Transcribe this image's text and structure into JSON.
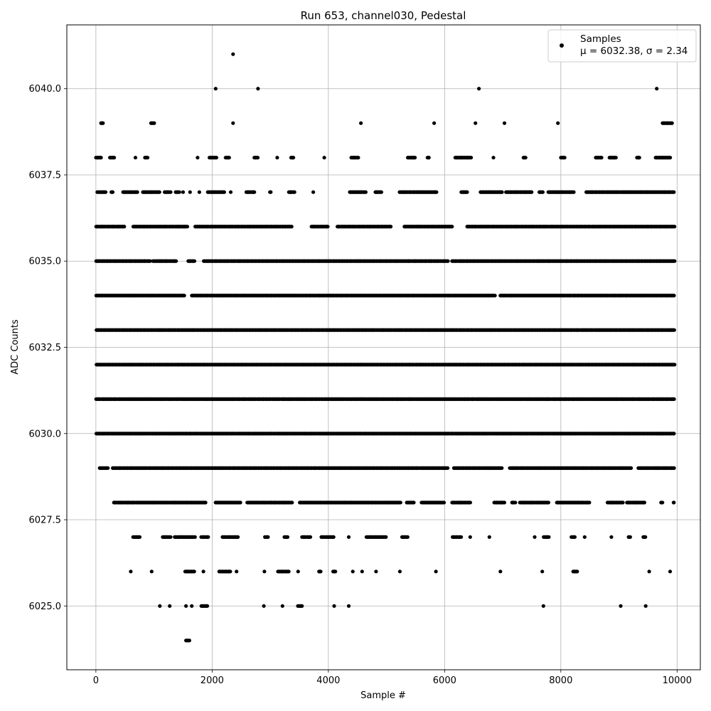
{
  "chart_data": {
    "type": "scatter",
    "title": "Run 653, channel030, Pedestal",
    "xlabel": "Sample #",
    "ylabel": "ADC Counts",
    "xlim": [
      -500,
      10400
    ],
    "ylim": [
      6023.15,
      6041.85
    ],
    "xticks": [
      0,
      2000,
      4000,
      6000,
      8000,
      10000
    ],
    "xtick_labels": [
      "0",
      "2000",
      "4000",
      "6000",
      "8000",
      "10000"
    ],
    "yticks": [
      6025.0,
      6027.5,
      6030.0,
      6032.5,
      6035.0,
      6037.5,
      6040.0
    ],
    "ytick_labels": [
      "6025.0",
      "6027.5",
      "6030.0",
      "6032.5",
      "6035.0",
      "6037.5",
      "6040.0"
    ],
    "grid": true,
    "legend_position": "top-right",
    "marker_color": "#000000",
    "series": [
      {
        "name": "Samples",
        "stats": "μ = 6032.38, σ = 2.34",
        "mean": 6032.38,
        "sigma": 2.34,
        "n_samples": 10000,
        "level_ranges": [
          {
            "y": 6041,
            "x_ranges": [
              [
                2360,
                2360
              ]
            ]
          },
          {
            "y": 6040,
            "x_ranges": [
              [
                2060,
                2060
              ],
              [
                2790,
                2790
              ],
              [
                6590,
                6590
              ],
              [
                9650,
                9650
              ]
            ]
          },
          {
            "y": 6039,
            "x_ranges": [
              [
                80,
                130
              ],
              [
                940,
                1010
              ],
              [
                2360,
                2360
              ],
              [
                4560,
                4560
              ],
              [
                5820,
                5820
              ],
              [
                6530,
                6530
              ],
              [
                7030,
                7030
              ],
              [
                7950,
                7950
              ],
              [
                9740,
                9920
              ]
            ]
          },
          {
            "y": 6038,
            "x_ranges": [
              [
                0,
                100
              ],
              [
                240,
                320
              ],
              [
                680,
                680
              ],
              [
                840,
                900
              ],
              [
                1750,
                1750
              ],
              [
                1950,
                2080
              ],
              [
                2230,
                2300
              ],
              [
                2720,
                2790
              ],
              [
                3120,
                3120
              ],
              [
                3350,
                3400
              ],
              [
                3930,
                3930
              ],
              [
                4390,
                4520
              ],
              [
                5360,
                5500
              ],
              [
                5700,
                5740
              ],
              [
                6180,
                6460
              ],
              [
                6840,
                6840
              ],
              [
                7350,
                7400
              ],
              [
                8000,
                8070
              ],
              [
                8600,
                8710
              ],
              [
                8830,
                8960
              ],
              [
                9310,
                9360
              ],
              [
                9620,
                9890
              ]
            ]
          },
          {
            "y": 6037,
            "x_ranges": [
              [
                20,
                180
              ],
              [
                260,
                300
              ],
              [
                460,
                720
              ],
              [
                800,
                1100
              ],
              [
                1180,
                1290
              ],
              [
                1370,
                1440
              ],
              [
                1500,
                1500
              ],
              [
                1620,
                1620
              ],
              [
                1780,
                1780
              ],
              [
                1920,
                2220
              ],
              [
                2320,
                2320
              ],
              [
                2580,
                2740
              ],
              [
                2990,
                3020
              ],
              [
                3310,
                3420
              ],
              [
                3740,
                3740
              ],
              [
                4360,
                4650
              ],
              [
                4800,
                4920
              ],
              [
                5220,
                5870
              ],
              [
                6280,
                6400
              ],
              [
                6610,
                7000
              ],
              [
                7050,
                7510
              ],
              [
                7620,
                7700
              ],
              [
                7780,
                8230
              ],
              [
                8430,
                9950
              ]
            ]
          },
          {
            "y": 6036,
            "x_ranges": [
              [
                0,
                500
              ],
              [
                640,
                1580
              ],
              [
                1700,
                3380
              ],
              [
                3700,
                4000
              ],
              [
                4150,
                5080
              ],
              [
                5300,
                6140
              ],
              [
                6380,
                9960
              ]
            ]
          },
          {
            "y": 6035,
            "x_ranges": [
              [
                0,
                940
              ],
              [
                980,
                1390
              ],
              [
                1580,
                1700
              ],
              [
                1850,
                6070
              ],
              [
                6120,
                9960
              ]
            ]
          },
          {
            "y": 6034,
            "x_ranges": [
              [
                0,
                1530
              ],
              [
                1640,
                6870
              ],
              [
                6950,
                9960
              ]
            ]
          },
          {
            "y": 6033,
            "x_ranges": [
              [
                0,
                9960
              ]
            ]
          },
          {
            "y": 6032,
            "x_ranges": [
              [
                0,
                9960
              ]
            ]
          },
          {
            "y": 6031,
            "x_ranges": [
              [
                0,
                9960
              ]
            ]
          },
          {
            "y": 6030,
            "x_ranges": [
              [
                0,
                9960
              ]
            ]
          },
          {
            "y": 6029,
            "x_ranges": [
              [
                60,
                210
              ],
              [
                280,
                6060
              ],
              [
                6150,
                6990
              ],
              [
                7120,
                9220
              ],
              [
                9330,
                9960
              ]
            ]
          },
          {
            "y": 6028,
            "x_ranges": [
              [
                300,
                1900
              ],
              [
                2050,
                2500
              ],
              [
                2600,
                3380
              ],
              [
                3500,
                5250
              ],
              [
                5340,
                5480
              ],
              [
                5600,
                6000
              ],
              [
                6120,
                6450
              ],
              [
                6850,
                7040
              ],
              [
                7150,
                7220
              ],
              [
                7290,
                7800
              ],
              [
                7920,
                8500
              ],
              [
                8800,
                9080
              ],
              [
                9130,
                9450
              ],
              [
                9720,
                9760
              ],
              [
                9940,
                9950
              ]
            ]
          },
          {
            "y": 6027,
            "x_ranges": [
              [
                640,
                760
              ],
              [
                1140,
                1290
              ],
              [
                1350,
                1710
              ],
              [
                1810,
                1940
              ],
              [
                2170,
                2450
              ],
              [
                2900,
                2970
              ],
              [
                3240,
                3310
              ],
              [
                3540,
                3700
              ],
              [
                3870,
                4100
              ],
              [
                4350,
                4350
              ],
              [
                4650,
                5000
              ],
              [
                5260,
                5370
              ],
              [
                6130,
                6290
              ],
              [
                6440,
                6440
              ],
              [
                6770,
                6770
              ],
              [
                7550,
                7550
              ],
              [
                7700,
                7800
              ],
              [
                8180,
                8250
              ],
              [
                8410,
                8410
              ],
              [
                8870,
                8870
              ],
              [
                9160,
                9200
              ],
              [
                9410,
                9460
              ]
            ]
          },
          {
            "y": 6026,
            "x_ranges": [
              [
                600,
                600
              ],
              [
                960,
                960
              ],
              [
                1530,
                1700
              ],
              [
                1850,
                1850
              ],
              [
                2120,
                2320
              ],
              [
                2420,
                2420
              ],
              [
                2900,
                2900
              ],
              [
                3130,
                3330
              ],
              [
                3480,
                3480
              ],
              [
                3830,
                3880
              ],
              [
                4070,
                4130
              ],
              [
                4420,
                4420
              ],
              [
                4580,
                4580
              ],
              [
                4820,
                4820
              ],
              [
                5230,
                5230
              ],
              [
                5850,
                5850
              ],
              [
                6960,
                6960
              ],
              [
                7680,
                7680
              ],
              [
                8210,
                8290
              ],
              [
                9520,
                9520
              ],
              [
                9880,
                9880
              ]
            ]
          },
          {
            "y": 6025,
            "x_ranges": [
              [
                1100,
                1100
              ],
              [
                1270,
                1270
              ],
              [
                1550,
                1550
              ],
              [
                1650,
                1650
              ],
              [
                1810,
                1920
              ],
              [
                2890,
                2890
              ],
              [
                3210,
                3210
              ],
              [
                3470,
                3560
              ],
              [
                4100,
                4100
              ],
              [
                4350,
                4350
              ],
              [
                7700,
                7700
              ],
              [
                9030,
                9030
              ],
              [
                9460,
                9460
              ]
            ]
          },
          {
            "y": 6024,
            "x_ranges": [
              [
                1540,
                1620
              ]
            ]
          }
        ]
      }
    ]
  }
}
